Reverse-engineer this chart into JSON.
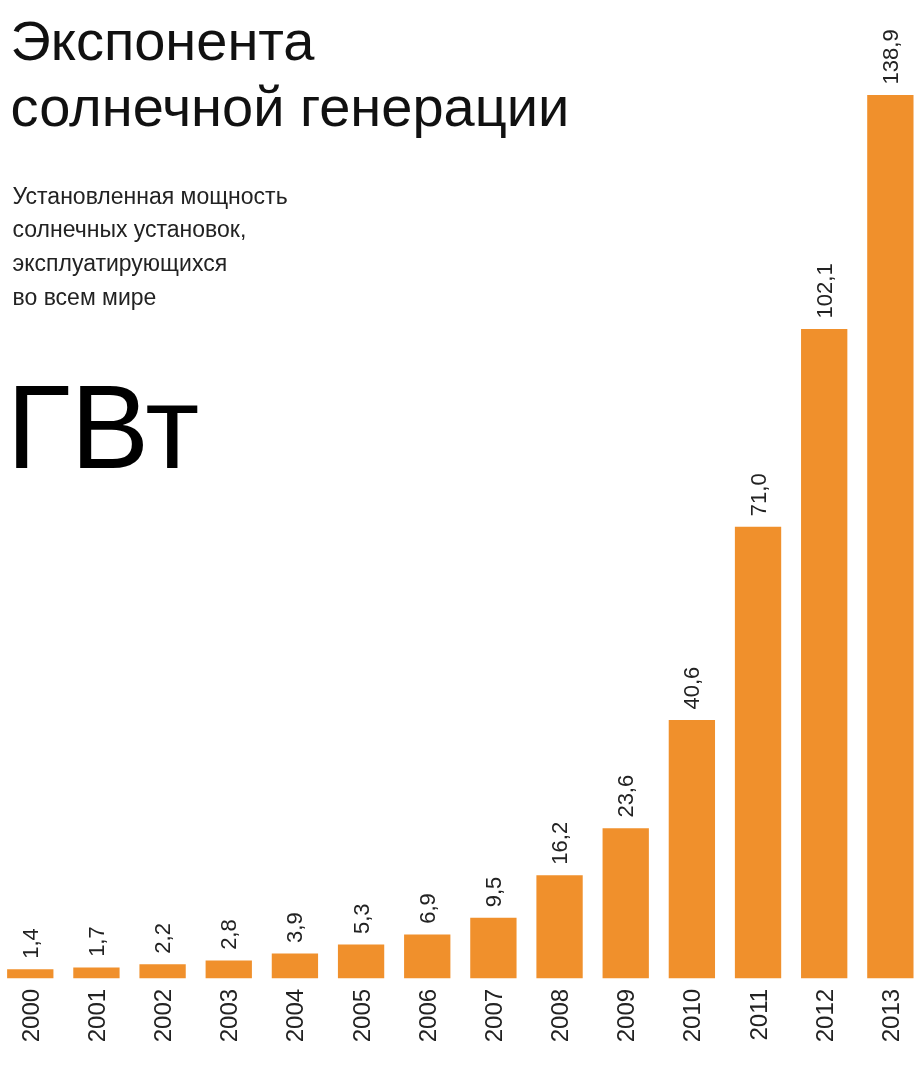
{
  "chart_data": {
    "type": "bar",
    "title": "Экспонента\nсолнечной генерации",
    "subtitle": "Установленная мощность\nсолнечных установок,\nэксплуатирующихся\nво всем мире",
    "ylabel": "ГВт",
    "categories": [
      "2000",
      "2001",
      "2002",
      "2003",
      "2004",
      "2005",
      "2006",
      "2007",
      "2008",
      "2009",
      "2010",
      "2011",
      "2012",
      "2013"
    ],
    "values": [
      1.4,
      1.7,
      2.2,
      2.8,
      3.9,
      5.3,
      6.9,
      9.5,
      16.2,
      23.6,
      40.6,
      71.0,
      102.1,
      138.9
    ],
    "value_labels": [
      "1,4",
      "1,7",
      "2,2",
      "2,8",
      "3,9",
      "5,3",
      "6,9",
      "9,5",
      "16,2",
      "23,6",
      "40,6",
      "71,0",
      "102,1",
      "138,9"
    ],
    "color": "#f0902c"
  }
}
